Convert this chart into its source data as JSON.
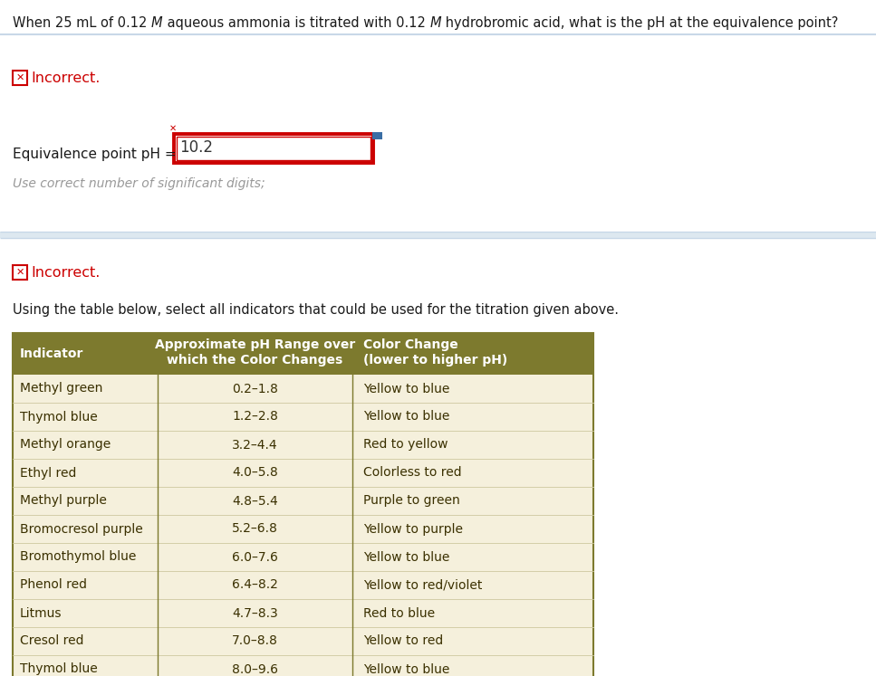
{
  "question_parts": [
    [
      "When 25 mL of 0.12 ",
      "normal"
    ],
    [
      "M",
      "italic"
    ],
    [
      " aqueous ammonia is titrated with 0.12 ",
      "normal"
    ],
    [
      "M",
      "italic"
    ],
    [
      " hydrobromic acid, what is the pH at the equivalence point?",
      "normal"
    ]
  ],
  "eq_point_label": "Equivalence point pH = ",
  "eq_point_value": "10.2",
  "hint_text": "Use correct number of significant digits;",
  "table_intro": "Using the table below, select all indicators that could be used for the titration given above.",
  "table_header_col1": "Indicator",
  "table_header_col2": "Approximate pH Range over\nwhich the Color Changes",
  "table_header_col3": "Color Change\n(lower to higher pH)",
  "table_rows": [
    [
      "Methyl green",
      "0.2–1.8",
      "Yellow to blue"
    ],
    [
      "Thymol blue",
      "1.2–2.8",
      "Yellow to blue"
    ],
    [
      "Methyl orange",
      "3.2–4.4",
      "Red to yellow"
    ],
    [
      "Ethyl red",
      "4.0–5.8",
      "Colorless to red"
    ],
    [
      "Methyl purple",
      "4.8–5.4",
      "Purple to green"
    ],
    [
      "Bromocresol purple",
      "5.2–6.8",
      "Yellow to purple"
    ],
    [
      "Bromothymol blue",
      "6.0–7.6",
      "Yellow to blue"
    ],
    [
      "Phenol red",
      "6.4–8.2",
      "Yellow to red/violet"
    ],
    [
      "Litmus",
      "4.7–8.3",
      "Red to blue"
    ],
    [
      "Cresol red",
      "7.0–8.8",
      "Yellow to red"
    ],
    [
      "Thymol blue",
      "8.0–9.6",
      "Yellow to blue"
    ]
  ],
  "header_bg_color": "#7d7a2e",
  "header_text_color": "#ffffff",
  "row_bg_color": "#f5f0dc",
  "table_text_color": "#3a3000",
  "bg_color": "#ffffff",
  "question_color": "#1a1a1a",
  "incorrect_box_color": "#cc0000",
  "incorrect_text_color": "#cc0000",
  "hint_color": "#999999",
  "input_box_border_color": "#cc0000",
  "input_text_color": "#333333",
  "separator_color": "#c8d8e8",
  "fig_w": 9.67,
  "fig_h": 7.47,
  "dpi": 100
}
